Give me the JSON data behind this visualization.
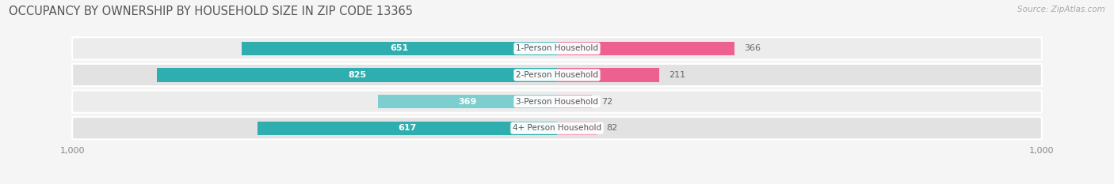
{
  "title": "OCCUPANCY BY OWNERSHIP BY HOUSEHOLD SIZE IN ZIP CODE 13365",
  "source": "Source: ZipAtlas.com",
  "categories": [
    "1-Person Household",
    "2-Person Household",
    "3-Person Household",
    "4+ Person Household"
  ],
  "owner_values": [
    651,
    825,
    369,
    617
  ],
  "renter_values": [
    366,
    211,
    72,
    82
  ],
  "owner_color_dark": "#2EAEAE",
  "owner_color_light": "#7DCECE",
  "renter_color_dark": "#EE6090",
  "renter_color_light": "#F4A0C0",
  "label_color_light": "#ffffff",
  "label_color_dark": "#666666",
  "category_label_color": "#555555",
  "axis_max": 1000,
  "background_color": "#f5f5f5",
  "row_bg_colors": [
    "#ececec",
    "#e2e2e2",
    "#ececec",
    "#e2e2e2"
  ],
  "title_fontsize": 10.5,
  "source_fontsize": 7.5,
  "bar_label_fontsize": 8,
  "category_fontsize": 7.5,
  "axis_fontsize": 8,
  "owner_threshold": 200,
  "renter_threshold": 9999
}
